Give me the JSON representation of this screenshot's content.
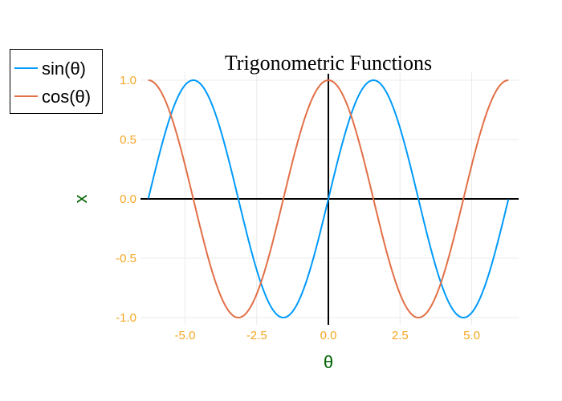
{
  "chart_data": {
    "type": "line",
    "title": "Trigonometric Functions",
    "xlabel": "θ",
    "ylabel": "x",
    "xlim": [
      -6.28,
      6.28
    ],
    "ylim": [
      -1.0,
      1.0
    ],
    "x_ticks": [
      -5.0,
      -2.5,
      0.0,
      2.5,
      5.0
    ],
    "x_tick_labels": [
      "-5.0",
      "-2.5",
      "0.0",
      "2.5",
      "5.0"
    ],
    "y_ticks": [
      -1.0,
      -0.5,
      0.0,
      0.5,
      1.0
    ],
    "y_tick_labels": [
      "-1.0",
      "-0.5",
      "0.0",
      "0.5",
      "1.0"
    ],
    "grid": true,
    "legend_position": "top-left",
    "series": [
      {
        "name": "sin(θ)",
        "function": "sin",
        "color": "#009AFA",
        "x_range": [
          -6.28,
          6.28
        ]
      },
      {
        "name": "cos(θ)",
        "function": "cos",
        "color": "#E26F46",
        "x_range": [
          -6.28,
          6.28
        ]
      }
    ],
    "colors": {
      "tick_text": "#F5A623",
      "axis_label": "#006400",
      "grid": "#EBEBEB",
      "zero_lines": "#000000"
    }
  }
}
